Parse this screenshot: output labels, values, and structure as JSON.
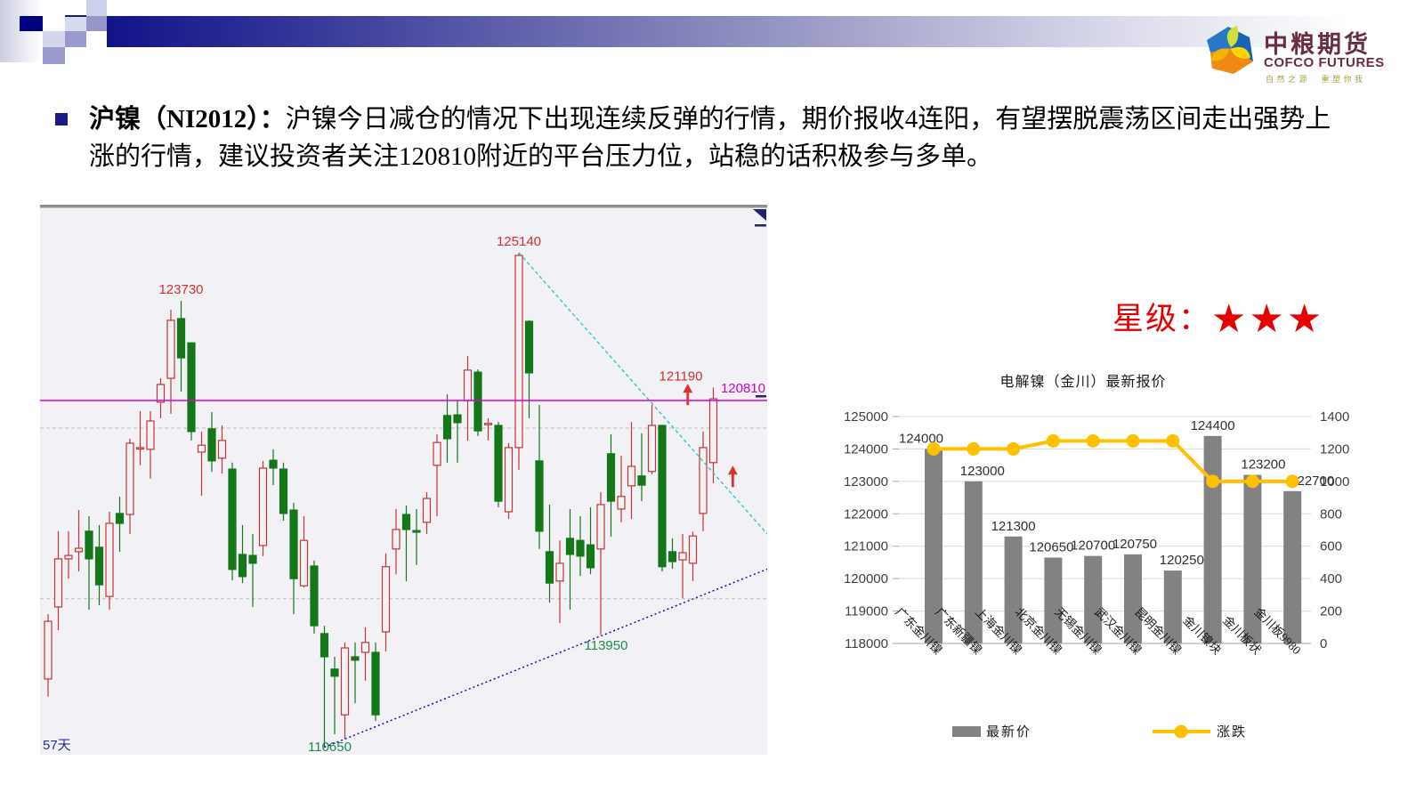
{
  "header": {
    "logo": {
      "name_cn": "中粮期货",
      "name_en": "COFCO FUTURES",
      "slogan": "自然之源　重塑你我"
    }
  },
  "bullet": {
    "prefix": "沪镍（NI2012）：",
    "text": "沪镍今日减仓的情况下出现连续反弹的行情，期价报收4连阳，有望摆脱震荡区间走出强势上涨的行情，建议投资者关注120810附近的平台压力位，站稳的话积极参与多单。"
  },
  "rating": {
    "label": "星级：",
    "stars": "★★★"
  },
  "chart_data": [
    {
      "id": "shanghai-nickel-candlestick",
      "type": "candlestick",
      "period_label": "57天",
      "resistance_line": 120810,
      "dashed_gridlines": [
        120000,
        115000
      ],
      "colors": {
        "up": "#c43535",
        "down": "#15761a",
        "background": "#f1f1f6",
        "resistance": "#d400d4",
        "support_line": "#0000c0",
        "descending_line": "#2cc8c8"
      },
      "annotations": [
        {
          "text": "123730",
          "price": 123730,
          "candle": 13,
          "placement": "above",
          "color": "#d03030"
        },
        {
          "text": "125140",
          "price": 125140,
          "candle": 46,
          "placement": "above",
          "color": "#d03030"
        },
        {
          "text": "121190",
          "price": 121190,
          "candle": 65,
          "placement": "above-left",
          "color": "#d03030"
        },
        {
          "text": "120810",
          "price": 120810,
          "placement": "right-edge",
          "color": "#cc00cc"
        },
        {
          "text": "113950",
          "price": 113950,
          "candle": 54,
          "placement": "below",
          "color": "#1f8b4d"
        },
        {
          "text": "110650",
          "price": 110650,
          "candle": 27,
          "placement": "below",
          "color": "#1f8b4d"
        },
        {
          "text": "57天",
          "placement": "bottom-left",
          "color": "#2a2aa0"
        }
      ],
      "trendlines": [
        {
          "name": "rising-support",
          "color": "#0000c0",
          "dash": "2,3",
          "from_candle": 27,
          "from_price": 110650,
          "to_price": 115870
        },
        {
          "name": "descending-resistance",
          "color": "#2cc8c8",
          "dash": "4,3",
          "from_candle": 46,
          "from_price": 125140,
          "to_price": 116900
        }
      ],
      "up_arrows": [
        {
          "candle": 62.5,
          "price": 121300
        },
        {
          "candle": 66.9,
          "price": 118900
        }
      ],
      "candles_ohlc": [
        [
          112650,
          114550,
          112130,
          114340
        ],
        [
          114760,
          116980,
          114080,
          116170
        ],
        [
          116170,
          116980,
          115590,
          116270
        ],
        [
          116380,
          117600,
          115800,
          116480
        ],
        [
          116980,
          117420,
          114680,
          116170
        ],
        [
          116510,
          117160,
          114810,
          115410
        ],
        [
          115070,
          117550,
          114680,
          117210
        ],
        [
          117500,
          117990,
          116380,
          117210
        ],
        [
          117470,
          119690,
          116900,
          119560
        ],
        [
          119400,
          120500,
          118910,
          119430
        ],
        [
          119380,
          120500,
          118520,
          120210
        ],
        [
          120760,
          121460,
          120290,
          121280
        ],
        [
          121460,
          123470,
          120420,
          123160
        ],
        [
          123210,
          123730,
          121070,
          122060
        ],
        [
          122500,
          122500,
          119640,
          119900
        ],
        [
          119300,
          119900,
          118020,
          119500
        ],
        [
          119980,
          120470,
          118720,
          119040
        ],
        [
          119120,
          120080,
          118670,
          119640
        ],
        [
          118800,
          118990,
          115540,
          115860
        ],
        [
          116300,
          117160,
          115460,
          115650
        ],
        [
          116270,
          116900,
          114760,
          116040
        ],
        [
          116560,
          119040,
          116250,
          118830
        ],
        [
          119060,
          119380,
          118330,
          118830
        ],
        [
          118800,
          118990,
          117290,
          117500
        ],
        [
          117600,
          117810,
          114550,
          115590
        ],
        [
          115380,
          117420,
          115330,
          116710
        ],
        [
          115960,
          116120,
          113980,
          114210
        ],
        [
          113980,
          114210,
          110650,
          113300
        ],
        [
          112940,
          113300,
          111030,
          112730
        ],
        [
          111600,
          113720,
          110900,
          113560
        ],
        [
          113300,
          113720,
          111940,
          113200
        ],
        [
          113430,
          114160,
          112600,
          113720
        ],
        [
          113430,
          113720,
          111420,
          111600
        ],
        [
          114030,
          116330,
          113460,
          115940
        ],
        [
          116460,
          117630,
          115720,
          117030
        ],
        [
          117470,
          117730,
          115510,
          117030
        ],
        [
          117000,
          117630,
          115990,
          116950
        ],
        [
          117240,
          118120,
          116900,
          117940
        ],
        [
          118910,
          119820,
          117420,
          119580
        ],
        [
          120370,
          120990,
          118990,
          119690
        ],
        [
          120390,
          120810,
          118990,
          120160
        ],
        [
          120810,
          122110,
          119640,
          121700
        ],
        [
          121640,
          121720,
          119770,
          119920
        ],
        [
          120100,
          120290,
          119640,
          120140
        ],
        [
          120080,
          120180,
          117680,
          117860
        ],
        [
          117550,
          119560,
          117340,
          119430
        ],
        [
          119430,
          125140,
          118780,
          125060
        ],
        [
          123130,
          123160,
          120290,
          121620
        ],
        [
          119040,
          120680,
          116460,
          116980
        ],
        [
          116380,
          117760,
          114890,
          115460
        ],
        [
          115520,
          116710,
          114290,
          116040
        ],
        [
          116770,
          117630,
          114680,
          116300
        ],
        [
          116710,
          117420,
          115670,
          116250
        ],
        [
          116580,
          117680,
          115720,
          115910
        ],
        [
          116460,
          118120,
          113950,
          117760
        ],
        [
          119250,
          119820,
          116820,
          117860
        ],
        [
          117630,
          119190,
          117240,
          118000
        ],
        [
          118310,
          120180,
          117340,
          118880
        ],
        [
          118600,
          119850,
          117860,
          118330
        ],
        [
          118730,
          120680,
          118650,
          120080
        ],
        [
          120080,
          120080,
          115800,
          115940
        ],
        [
          116380,
          116770,
          115880,
          116090
        ],
        [
          116140,
          116900,
          115020,
          116350
        ],
        [
          116040,
          116970,
          115520,
          116840
        ],
        [
          117500,
          119900,
          116980,
          119430
        ],
        [
          118990,
          121190,
          118390,
          120860
        ]
      ]
    },
    {
      "id": "jinchuan-nickel-quotes",
      "type": "bar",
      "title": "电解镍（金川）最新报价",
      "categories": [
        "广东金川镍",
        "广东新疆镍",
        "上海金川镍",
        "北京金川镍",
        "无锡金川镍",
        "武汉金川镍",
        "昆明金川镍",
        "金川镍块",
        "金川板状",
        "金川板9980"
      ],
      "series": [
        {
          "name": "最新价",
          "type": "bar",
          "axis": "left",
          "color": "#828282",
          "values": [
            124000,
            123000,
            121300,
            120650,
            120700,
            120750,
            120250,
            124400,
            123200,
            122700
          ]
        },
        {
          "name": "涨跌",
          "type": "line",
          "axis": "right",
          "color": "#ffc000",
          "values": [
            1200,
            1200,
            1200,
            1250,
            1250,
            1250,
            1250,
            1000,
            1000,
            1000
          ]
        }
      ],
      "left_axis": {
        "min": 118000,
        "max": 125000,
        "ticks": [
          125000,
          124000,
          123000,
          122000,
          121000,
          120000,
          119000,
          118000
        ]
      },
      "right_axis": {
        "min": 0,
        "max": 1400,
        "ticks": [
          1400,
          1200,
          1000,
          800,
          600,
          400,
          200,
          0
        ]
      },
      "legend": [
        "最新价",
        "涨跌"
      ],
      "grid": true,
      "legend_position": "bottom"
    }
  ]
}
